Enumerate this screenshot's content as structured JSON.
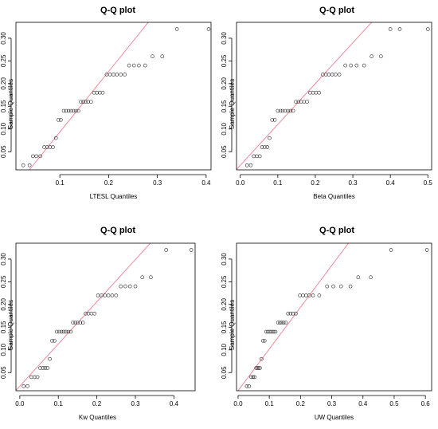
{
  "chart_data": [
    {
      "type": "scatter",
      "title": "Q-Q plot",
      "xlabel": "LTESL Quantiles",
      "ylabel": "Sample Quantiles",
      "xlim": [
        0.01,
        0.41
      ],
      "ylim": [
        0.01,
        0.335
      ],
      "xticks": [
        "0.1",
        "0.2",
        "0.3",
        "0.4"
      ],
      "yticks": [
        "0.05",
        "0.10",
        "0.15",
        "0.20",
        "0.25",
        "0.30"
      ],
      "reference_line": {
        "intercept": -0.04,
        "slope": 1.333,
        "color": "#f08090"
      },
      "points": [
        {
          "x": 0.025,
          "y": 0.02
        },
        {
          "x": 0.038,
          "y": 0.02
        },
        {
          "x": 0.045,
          "y": 0.04
        },
        {
          "x": 0.052,
          "y": 0.04
        },
        {
          "x": 0.06,
          "y": 0.04
        },
        {
          "x": 0.068,
          "y": 0.06
        },
        {
          "x": 0.074,
          "y": 0.06
        },
        {
          "x": 0.08,
          "y": 0.06
        },
        {
          "x": 0.086,
          "y": 0.06
        },
        {
          "x": 0.092,
          "y": 0.08
        },
        {
          "x": 0.097,
          "y": 0.12
        },
        {
          "x": 0.102,
          "y": 0.12
        },
        {
          "x": 0.108,
          "y": 0.14
        },
        {
          "x": 0.113,
          "y": 0.14
        },
        {
          "x": 0.118,
          "y": 0.14
        },
        {
          "x": 0.123,
          "y": 0.14
        },
        {
          "x": 0.128,
          "y": 0.14
        },
        {
          "x": 0.133,
          "y": 0.14
        },
        {
          "x": 0.138,
          "y": 0.14
        },
        {
          "x": 0.143,
          "y": 0.16
        },
        {
          "x": 0.148,
          "y": 0.16
        },
        {
          "x": 0.153,
          "y": 0.16
        },
        {
          "x": 0.158,
          "y": 0.16
        },
        {
          "x": 0.164,
          "y": 0.16
        },
        {
          "x": 0.17,
          "y": 0.18
        },
        {
          "x": 0.176,
          "y": 0.18
        },
        {
          "x": 0.182,
          "y": 0.18
        },
        {
          "x": 0.188,
          "y": 0.18
        },
        {
          "x": 0.196,
          "y": 0.22
        },
        {
          "x": 0.203,
          "y": 0.22
        },
        {
          "x": 0.21,
          "y": 0.22
        },
        {
          "x": 0.217,
          "y": 0.22
        },
        {
          "x": 0.225,
          "y": 0.22
        },
        {
          "x": 0.233,
          "y": 0.22
        },
        {
          "x": 0.242,
          "y": 0.24
        },
        {
          "x": 0.252,
          "y": 0.24
        },
        {
          "x": 0.262,
          "y": 0.24
        },
        {
          "x": 0.275,
          "y": 0.24
        },
        {
          "x": 0.29,
          "y": 0.26
        },
        {
          "x": 0.31,
          "y": 0.26
        },
        {
          "x": 0.34,
          "y": 0.32
        },
        {
          "x": 0.405,
          "y": 0.32
        }
      ]
    },
    {
      "type": "scatter",
      "title": "Q-Q plot",
      "xlabel": "Beta Quantiles",
      "ylabel": "Sample Quantiles",
      "xlim": [
        -0.01,
        0.51
      ],
      "ylim": [
        0.01,
        0.335
      ],
      "xticks": [
        "0.0",
        "0.1",
        "0.2",
        "0.3",
        "0.4",
        "0.5"
      ],
      "yticks": [
        "0.05",
        "0.10",
        "0.15",
        "0.20",
        "0.25",
        "0.30"
      ],
      "reference_line": {
        "intercept": 0.02,
        "slope": 0.9,
        "color": "#f08090"
      },
      "points": [
        {
          "x": 0.018,
          "y": 0.02
        },
        {
          "x": 0.028,
          "y": 0.02
        },
        {
          "x": 0.036,
          "y": 0.04
        },
        {
          "x": 0.044,
          "y": 0.04
        },
        {
          "x": 0.052,
          "y": 0.04
        },
        {
          "x": 0.058,
          "y": 0.06
        },
        {
          "x": 0.065,
          "y": 0.06
        },
        {
          "x": 0.072,
          "y": 0.06
        },
        {
          "x": 0.078,
          "y": 0.08
        },
        {
          "x": 0.085,
          "y": 0.12
        },
        {
          "x": 0.092,
          "y": 0.12
        },
        {
          "x": 0.1,
          "y": 0.14
        },
        {
          "x": 0.107,
          "y": 0.14
        },
        {
          "x": 0.113,
          "y": 0.14
        },
        {
          "x": 0.12,
          "y": 0.14
        },
        {
          "x": 0.127,
          "y": 0.14
        },
        {
          "x": 0.134,
          "y": 0.14
        },
        {
          "x": 0.141,
          "y": 0.14
        },
        {
          "x": 0.148,
          "y": 0.16
        },
        {
          "x": 0.155,
          "y": 0.16
        },
        {
          "x": 0.162,
          "y": 0.16
        },
        {
          "x": 0.17,
          "y": 0.16
        },
        {
          "x": 0.178,
          "y": 0.16
        },
        {
          "x": 0.186,
          "y": 0.18
        },
        {
          "x": 0.194,
          "y": 0.18
        },
        {
          "x": 0.202,
          "y": 0.18
        },
        {
          "x": 0.21,
          "y": 0.18
        },
        {
          "x": 0.22,
          "y": 0.22
        },
        {
          "x": 0.228,
          "y": 0.22
        },
        {
          "x": 0.236,
          "y": 0.22
        },
        {
          "x": 0.245,
          "y": 0.22
        },
        {
          "x": 0.254,
          "y": 0.22
        },
        {
          "x": 0.264,
          "y": 0.22
        },
        {
          "x": 0.28,
          "y": 0.24
        },
        {
          "x": 0.295,
          "y": 0.24
        },
        {
          "x": 0.31,
          "y": 0.24
        },
        {
          "x": 0.33,
          "y": 0.24
        },
        {
          "x": 0.35,
          "y": 0.26
        },
        {
          "x": 0.375,
          "y": 0.26
        },
        {
          "x": 0.4,
          "y": 0.32
        },
        {
          "x": 0.425,
          "y": 0.32
        },
        {
          "x": 0.5,
          "y": 0.32
        }
      ]
    },
    {
      "type": "scatter",
      "title": "Q-Q plot",
      "xlabel": "Kw Quantiles",
      "ylabel": "Sample Quantiles",
      "xlim": [
        -0.01,
        0.455
      ],
      "ylim": [
        0.01,
        0.335
      ],
      "xticks": [
        "0.0",
        "0.1",
        "0.2",
        "0.3",
        "0.4"
      ],
      "yticks": [
        "0.05",
        "0.10",
        "0.15",
        "0.20",
        "0.25",
        "0.30"
      ],
      "reference_line": {
        "intercept": 0.02,
        "slope": 0.93,
        "color": "#f08090"
      },
      "points": [
        {
          "x": 0.01,
          "y": 0.02
        },
        {
          "x": 0.02,
          "y": 0.02
        },
        {
          "x": 0.03,
          "y": 0.04
        },
        {
          "x": 0.038,
          "y": 0.04
        },
        {
          "x": 0.046,
          "y": 0.04
        },
        {
          "x": 0.053,
          "y": 0.06
        },
        {
          "x": 0.06,
          "y": 0.06
        },
        {
          "x": 0.066,
          "y": 0.06
        },
        {
          "x": 0.072,
          "y": 0.06
        },
        {
          "x": 0.078,
          "y": 0.08
        },
        {
          "x": 0.084,
          "y": 0.12
        },
        {
          "x": 0.09,
          "y": 0.12
        },
        {
          "x": 0.096,
          "y": 0.14
        },
        {
          "x": 0.102,
          "y": 0.14
        },
        {
          "x": 0.108,
          "y": 0.14
        },
        {
          "x": 0.114,
          "y": 0.14
        },
        {
          "x": 0.12,
          "y": 0.14
        },
        {
          "x": 0.126,
          "y": 0.14
        },
        {
          "x": 0.132,
          "y": 0.14
        },
        {
          "x": 0.138,
          "y": 0.16
        },
        {
          "x": 0.144,
          "y": 0.16
        },
        {
          "x": 0.15,
          "y": 0.16
        },
        {
          "x": 0.157,
          "y": 0.16
        },
        {
          "x": 0.164,
          "y": 0.16
        },
        {
          "x": 0.171,
          "y": 0.18
        },
        {
          "x": 0.178,
          "y": 0.18
        },
        {
          "x": 0.186,
          "y": 0.18
        },
        {
          "x": 0.194,
          "y": 0.18
        },
        {
          "x": 0.203,
          "y": 0.22
        },
        {
          "x": 0.212,
          "y": 0.22
        },
        {
          "x": 0.221,
          "y": 0.22
        },
        {
          "x": 0.23,
          "y": 0.22
        },
        {
          "x": 0.24,
          "y": 0.22
        },
        {
          "x": 0.25,
          "y": 0.22
        },
        {
          "x": 0.262,
          "y": 0.24
        },
        {
          "x": 0.274,
          "y": 0.24
        },
        {
          "x": 0.286,
          "y": 0.24
        },
        {
          "x": 0.3,
          "y": 0.24
        },
        {
          "x": 0.318,
          "y": 0.26
        },
        {
          "x": 0.34,
          "y": 0.26
        },
        {
          "x": 0.38,
          "y": 0.32
        },
        {
          "x": 0.445,
          "y": 0.32
        }
      ]
    },
    {
      "type": "scatter",
      "title": "Q-Q plot",
      "xlabel": "UW Quantiles",
      "ylabel": "Sample Quantiles",
      "xlim": [
        -0.005,
        0.62
      ],
      "ylim": [
        0.01,
        0.335
      ],
      "xticks": [
        "0.0",
        "0.1",
        "0.2",
        "0.3",
        "0.4",
        "0.5",
        "0.6"
      ],
      "yticks": [
        "0.05",
        "0.10",
        "0.15",
        "0.20",
        "0.25",
        "0.30"
      ],
      "reference_line": {
        "intercept": 0.01,
        "slope": 0.92,
        "color": "#f08090"
      },
      "points": [
        {
          "x": 0.028,
          "y": 0.02
        },
        {
          "x": 0.035,
          "y": 0.02
        },
        {
          "x": 0.042,
          "y": 0.04
        },
        {
          "x": 0.048,
          "y": 0.04
        },
        {
          "x": 0.053,
          "y": 0.04
        },
        {
          "x": 0.058,
          "y": 0.06
        },
        {
          "x": 0.062,
          "y": 0.06
        },
        {
          "x": 0.066,
          "y": 0.06
        },
        {
          "x": 0.07,
          "y": 0.06
        },
        {
          "x": 0.075,
          "y": 0.08
        },
        {
          "x": 0.08,
          "y": 0.12
        },
        {
          "x": 0.085,
          "y": 0.12
        },
        {
          "x": 0.09,
          "y": 0.14
        },
        {
          "x": 0.095,
          "y": 0.14
        },
        {
          "x": 0.1,
          "y": 0.14
        },
        {
          "x": 0.105,
          "y": 0.14
        },
        {
          "x": 0.11,
          "y": 0.14
        },
        {
          "x": 0.115,
          "y": 0.14
        },
        {
          "x": 0.12,
          "y": 0.14
        },
        {
          "x": 0.128,
          "y": 0.16
        },
        {
          "x": 0.134,
          "y": 0.16
        },
        {
          "x": 0.14,
          "y": 0.16
        },
        {
          "x": 0.146,
          "y": 0.16
        },
        {
          "x": 0.153,
          "y": 0.16
        },
        {
          "x": 0.16,
          "y": 0.18
        },
        {
          "x": 0.168,
          "y": 0.18
        },
        {
          "x": 0.176,
          "y": 0.18
        },
        {
          "x": 0.185,
          "y": 0.18
        },
        {
          "x": 0.198,
          "y": 0.22
        },
        {
          "x": 0.208,
          "y": 0.22
        },
        {
          "x": 0.218,
          "y": 0.22
        },
        {
          "x": 0.228,
          "y": 0.22
        },
        {
          "x": 0.24,
          "y": 0.22
        },
        {
          "x": 0.26,
          "y": 0.22
        },
        {
          "x": 0.285,
          "y": 0.24
        },
        {
          "x": 0.305,
          "y": 0.24
        },
        {
          "x": 0.33,
          "y": 0.24
        },
        {
          "x": 0.36,
          "y": 0.24
        },
        {
          "x": 0.385,
          "y": 0.26
        },
        {
          "x": 0.425,
          "y": 0.26
        },
        {
          "x": 0.49,
          "y": 0.32
        },
        {
          "x": 0.605,
          "y": 0.32
        }
      ]
    }
  ]
}
